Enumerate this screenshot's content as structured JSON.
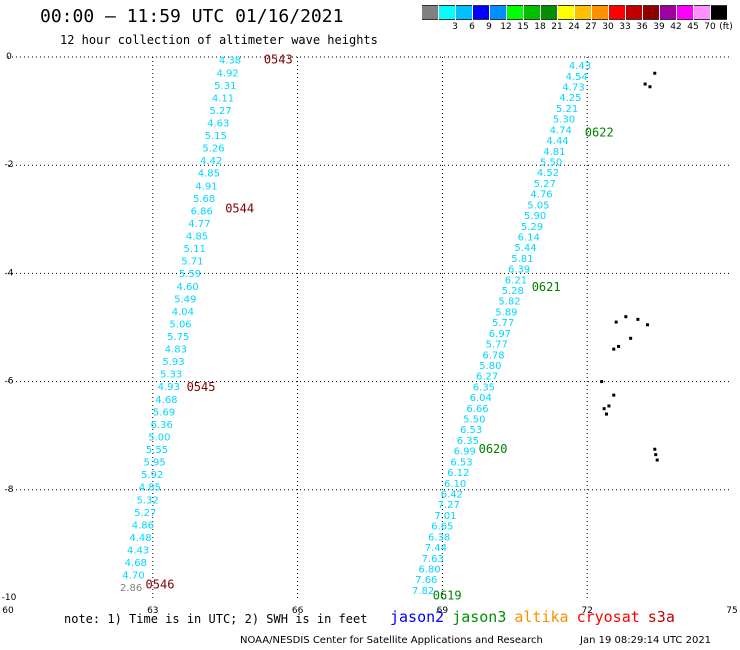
{
  "header": {
    "title": "00:00 – 11:59 UTC 01/16/2021",
    "subtitle": "12 hour collection of altimeter wave heights"
  },
  "colorbar": {
    "unit_label": "(ft)",
    "bins": [
      {
        "color": "#808080",
        "label": ""
      },
      {
        "color": "#00ffff",
        "label": "3"
      },
      {
        "color": "#00c0ff",
        "label": "6"
      },
      {
        "color": "#0000ff",
        "label": "9"
      },
      {
        "color": "#0090ff",
        "label": "12"
      },
      {
        "color": "#00ff00",
        "label": "15"
      },
      {
        "color": "#00c000",
        "label": "18"
      },
      {
        "color": "#009000",
        "label": "21"
      },
      {
        "color": "#ffff00",
        "label": "24"
      },
      {
        "color": "#ffc000",
        "label": "27"
      },
      {
        "color": "#ff9000",
        "label": "30"
      },
      {
        "color": "#ff0000",
        "label": "33"
      },
      {
        "color": "#c00000",
        "label": "36"
      },
      {
        "color": "#900000",
        "label": "39"
      },
      {
        "color": "#a000a0",
        "label": "42"
      },
      {
        "color": "#ff00ff",
        "label": "45"
      },
      {
        "color": "#ff90ff",
        "label": "70"
      },
      {
        "color": "#000000",
        "label": ""
      }
    ]
  },
  "chart_data": {
    "type": "scatter",
    "xlim": [
      60,
      75
    ],
    "ylim": [
      -10,
      0
    ],
    "x_ticks": [
      "60",
      "63",
      "66",
      "69",
      "72",
      "75"
    ],
    "y_ticks": [
      "0",
      "-2",
      "-4",
      "-6",
      "-8",
      "-10"
    ],
    "grid": true,
    "point_color": "#00d8ff",
    "lowval_color": "#808080",
    "track_a": {
      "color": "#00d8ff",
      "start": [
        64.6,
        -0.05
      ],
      "end": [
        62.55,
        -9.8
      ],
      "values": [
        "4.38",
        "4.92",
        "5.31",
        "4.11",
        "5.27",
        "4.63",
        "5.15",
        "5.26",
        "4.42",
        "4.85",
        "4.91",
        "5.68",
        "6.86",
        "4.77",
        "4.85",
        "5.11",
        "5.71",
        "5.59",
        "4.60",
        "5.49",
        "4.04",
        "5.06",
        "5.75",
        "4.83",
        "5.93",
        "5.33",
        "4.93",
        "4.68",
        "5.69",
        "6.36",
        "5.00",
        "5.55",
        "5.95",
        "5.92",
        "4.85",
        "5.32",
        "5.27",
        "4.86",
        "4.48",
        "4.43",
        "4.68",
        "4.70",
        "2.86"
      ]
    },
    "track_b": {
      "color": "#00d8ff",
      "start": [
        71.85,
        -0.15
      ],
      "end": [
        68.6,
        -9.85
      ],
      "values": [
        "4.43",
        "4.54",
        "4.73",
        "4.25",
        "5.21",
        "5.30",
        "4.74",
        "4.44",
        "4.81",
        "5.50",
        "4.52",
        "5.27",
        "4.76",
        "5.05",
        "5.90",
        "5.29",
        "6.14",
        "5.44",
        "5.81",
        "6.39",
        "6.21",
        "5.28",
        "5.82",
        "5.89",
        "5.77",
        "6.97",
        "5.77",
        "6.78",
        "5.80",
        "6.27",
        "6.35",
        "6.04",
        "6.66",
        "5.50",
        "6.53",
        "6.35",
        "6.99",
        "6.53",
        "6.12",
        "6.10",
        "6.42",
        "7.27",
        "7.01",
        "6.65",
        "6.38",
        "7.44",
        "7.63",
        "6.80",
        "7.66",
        "7.82"
      ]
    },
    "time_labels": [
      {
        "text": "0543",
        "x": 65.3,
        "y": -0.05,
        "color": "#800000"
      },
      {
        "text": "0544",
        "x": 64.5,
        "y": -2.8,
        "color": "#800000"
      },
      {
        "text": "0545",
        "x": 63.7,
        "y": -6.1,
        "color": "#800000"
      },
      {
        "text": "0546",
        "x": 62.85,
        "y": -9.75,
        "color": "#800000"
      },
      {
        "text": "0622",
        "x": 71.95,
        "y": -1.4,
        "color": "#008000"
      },
      {
        "text": "0621",
        "x": 70.85,
        "y": -4.25,
        "color": "#008000"
      },
      {
        "text": "0620",
        "x": 69.75,
        "y": -7.25,
        "color": "#008000"
      },
      {
        "text": "0619",
        "x": 68.8,
        "y": -9.95,
        "color": "#008000"
      }
    ],
    "land": [
      {
        "x": 73.4,
        "y": -0.3
      },
      {
        "x": 73.2,
        "y": -0.5
      },
      {
        "x": 73.3,
        "y": -0.55
      },
      {
        "x": 72.8,
        "y": -4.8
      },
      {
        "x": 72.6,
        "y": -4.9
      },
      {
        "x": 73.05,
        "y": -4.85
      },
      {
        "x": 73.25,
        "y": -4.95
      },
      {
        "x": 72.65,
        "y": -5.35
      },
      {
        "x": 72.9,
        "y": -5.2
      },
      {
        "x": 72.55,
        "y": -5.4
      },
      {
        "x": 72.55,
        "y": -6.25
      },
      {
        "x": 72.3,
        "y": -6.0
      },
      {
        "x": 72.45,
        "y": -6.45
      },
      {
        "x": 72.4,
        "y": -6.6
      },
      {
        "x": 72.35,
        "y": -6.5
      },
      {
        "x": 73.4,
        "y": -7.25
      },
      {
        "x": 73.45,
        "y": -7.45
      },
      {
        "x": 73.42,
        "y": -7.35
      }
    ]
  },
  "footer": {
    "note": "note: 1) Time is in UTC; 2) SWH is in feet",
    "credit": "NOAA/NESDIS Center for Satellite Applications and Research",
    "timestamp": "Jan 19 08:29:14 UTC 2021",
    "legend": [
      {
        "name": "jason2",
        "color": "#0000ff"
      },
      {
        "name": "jason3",
        "color": "#009000"
      },
      {
        "name": "altika",
        "color": "#ff9000"
      },
      {
        "name": "cryosat",
        "color": "#ff0000"
      },
      {
        "name": "s3a",
        "color": "#c00000"
      }
    ]
  }
}
